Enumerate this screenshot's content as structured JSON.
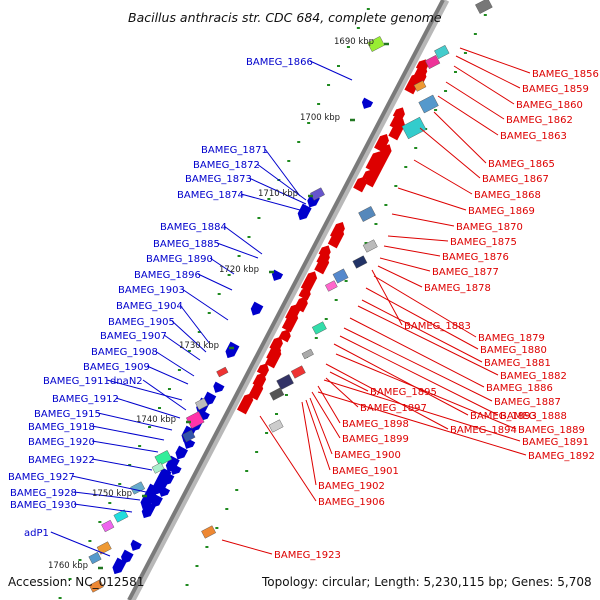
{
  "title": "Bacillus anthracis str. CDC 684, complete genome",
  "footer": {
    "accession": "Accession: NC_012581",
    "info": "Topology: circular; Length: 5,230,115 bp; Genes: 5,708"
  },
  "ticks": [
    "1690 kbp",
    "1700 kbp",
    "1710 kbp",
    "1720 kbp",
    "1730 kbp",
    "1740 kbp",
    "1750 kbp",
    "1760 kbp"
  ],
  "colors": {
    "forward": "#0000cc",
    "reverse": "#dd0000",
    "backbone": "#888888",
    "tick": "#227722"
  },
  "labels_left": [
    "BAMEG_1866",
    "BAMEG_1871",
    "BAMEG_1872",
    "BAMEG_1873",
    "BAMEG_1874",
    "BAMEG_1884",
    "BAMEG_1885",
    "BAMEG_1890",
    "BAMEG_1896",
    "BAMEG_1903",
    "BAMEG_1904",
    "BAMEG_1905",
    "BAMEG_1907",
    "BAMEG_1908",
    "BAMEG_1909",
    "BAMEG_1911",
    "dnaN2",
    "BAMEG_1912",
    "BAMEG_1915",
    "BAMEG_1918",
    "BAMEG_1920",
    "BAMEG_1922",
    "BAMEG_1927",
    "BAMEG_1928",
    "BAMEG_1930",
    "adP1"
  ],
  "labels_right": [
    "BAMEG_1856",
    "BAMEG_1859",
    "BAMEG_1860",
    "BAMEG_1862",
    "BAMEG_1863",
    "BAMEG_1865",
    "BAMEG_1867",
    "BAMEG_1868",
    "BAMEG_1869",
    "BAMEG_1870",
    "BAMEG_1875",
    "BAMEG_1876",
    "BAMEG_1877",
    "BAMEG_1878",
    "BAMEG_1883",
    "BAMEG_1879",
    "BAMEG_1880",
    "BAMEG_1881",
    "BAMEG_1882",
    "BAMEG_1886",
    "BAMEG_1887",
    "BAMEG_1888",
    "BAMEG_1895",
    "BAMEG_1893",
    "BAMEG_1889",
    "BAMEG_1897",
    "BAMEG_1894",
    "BAMEG_1891",
    "BAMEG_1898",
    "BAMEG_1892",
    "BAMEG_1899",
    "BAMEG_1900",
    "BAMEG_1901",
    "BAMEG_1902",
    "BAMEG_1906",
    "BAMEG_1923"
  ]
}
